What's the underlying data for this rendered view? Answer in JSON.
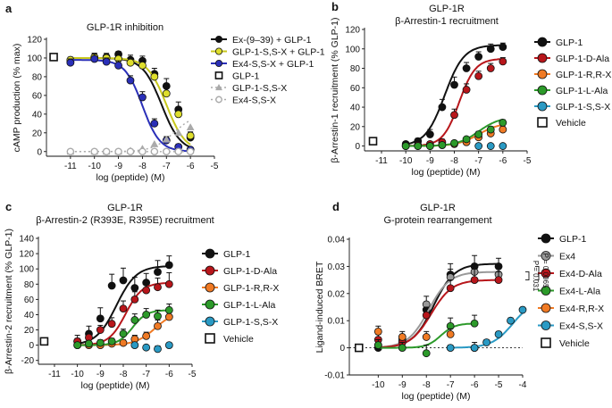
{
  "figure": {
    "background": "#ffffff"
  },
  "chart_data": [
    {
      "type": "line",
      "panel_label": "a",
      "title": "GLP-1R inhibition",
      "subtitle": "",
      "xlabel": "log (peptide) (M)",
      "ylabel": "cAMP production (% max)",
      "xlim": [
        -12,
        -5
      ],
      "ylim": [
        -5,
        120
      ],
      "xticks": [
        -11,
        -10,
        -9,
        -8,
        -7,
        -6,
        -5
      ],
      "xtick_labels": [
        "-11",
        "-10",
        "-9",
        "-8",
        "-7",
        "-6",
        "-5"
      ],
      "yticks": [
        0,
        20,
        40,
        60,
        80,
        100,
        120
      ],
      "ytick_labels": [
        "0",
        "20",
        "40",
        "60",
        "80",
        "100",
        "120"
      ],
      "zero_line": false,
      "legend_position": "right",
      "series": [
        {
          "name": "Ex-(9–39) + GLP-1",
          "marker": "circle",
          "color": "#111111",
          "x": [
            -11,
            -10,
            -9.5,
            -9,
            -8.5,
            -8,
            -7.5,
            -7,
            -6.5,
            -6
          ],
          "y": [
            96,
            100,
            101,
            104,
            98,
            97,
            83,
            70,
            45,
            15
          ],
          "err": [
            4,
            5,
            4,
            3,
            5,
            5,
            6,
            8,
            8,
            5
          ],
          "fit": {
            "top": 100,
            "bottom": 0,
            "logec50": -7.2,
            "hill": 1.1
          }
        },
        {
          "name": "GLP-1-S,S-X + GLP-1",
          "marker": "circle",
          "color": "#dede2c",
          "x": [
            -11,
            -10,
            -9.5,
            -9,
            -8.5,
            -8,
            -7.5,
            -7,
            -6.5,
            -6
          ],
          "y": [
            98,
            101,
            100,
            99,
            95,
            92,
            80,
            62,
            40,
            17
          ],
          "err": [
            3,
            4,
            3,
            4,
            4,
            5,
            5,
            6,
            6,
            4
          ],
          "fit": {
            "top": 100,
            "bottom": 0,
            "logec50": -7.0,
            "hill": 1.1
          }
        },
        {
          "name": "Ex4-S,S-X + GLP-1",
          "marker": "circle",
          "color": "#2a2fb8",
          "x": [
            -11,
            -10,
            -9.5,
            -9,
            -8.5,
            -8,
            -7.5,
            -7,
            -6.5,
            -6
          ],
          "y": [
            95,
            99,
            96,
            92,
            76,
            58,
            30,
            12,
            5,
            2
          ],
          "err": [
            4,
            5,
            4,
            5,
            5,
            6,
            5,
            4,
            3,
            2
          ],
          "fit": {
            "top": 98,
            "bottom": 0,
            "logec50": -8.0,
            "hill": 1.2
          }
        },
        {
          "name": "GLP-1",
          "marker": "square-open",
          "color": "#111111",
          "x": [
            -11.7
          ],
          "y": [
            101
          ],
          "err": [
            0
          ],
          "fit": null
        },
        {
          "name": "GLP-1-S,S-X",
          "marker": "triangle",
          "color": "#aaaaaa",
          "x": [
            -11,
            -10,
            -9.5,
            -9,
            -8.5,
            -8,
            -7.5,
            -7,
            -6.5,
            -6
          ],
          "y": [
            0,
            0,
            0,
            0,
            1,
            3,
            8,
            13,
            20,
            26
          ],
          "err": [
            0,
            0,
            0,
            0,
            0,
            0,
            0,
            0,
            0,
            0
          ],
          "fit": {
            "top": 40,
            "bottom": 0,
            "logec50": -6.7,
            "hill": 1.0
          },
          "dotted": true
        },
        {
          "name": "Ex4-S,S-X",
          "marker": "circle-open",
          "color": "#aaaaaa",
          "x": [
            -11,
            -10,
            -9.5,
            -9,
            -8.5,
            -8,
            -7.5,
            -7,
            -6.5,
            -6
          ],
          "y": [
            0,
            0,
            0,
            0,
            0,
            0,
            0,
            0,
            0,
            0
          ],
          "err": [
            0,
            0,
            0,
            0,
            0,
            0,
            0,
            0,
            0,
            0
          ],
          "fit": {
            "top": 0,
            "bottom": 0,
            "logec50": -7,
            "hill": 1.0
          },
          "dotted": true
        }
      ]
    },
    {
      "type": "line",
      "panel_label": "b",
      "title": "GLP-1R",
      "subtitle": "β-Arrestin-1 recruitment",
      "xlabel": "log (peptide) (M)",
      "ylabel": "β-Arrestin-1 recruitment (% GLP-1)",
      "xlim": [
        -11.7,
        -5
      ],
      "ylim": [
        -5,
        120
      ],
      "xticks": [
        -11,
        -10,
        -9,
        -8,
        -7,
        -6,
        -5
      ],
      "xtick_labels": [
        "-11",
        "-10",
        "-9",
        "-8",
        "-7",
        "-6",
        "-5"
      ],
      "yticks": [
        0,
        20,
        40,
        60,
        80,
        100,
        120
      ],
      "ytick_labels": [
        "0",
        "20",
        "40",
        "60",
        "80",
        "100",
        "120"
      ],
      "zero_line": false,
      "legend_position": "right",
      "series": [
        {
          "name": "GLP-1",
          "marker": "circle",
          "color": "#111111",
          "x": [
            -10,
            -9.5,
            -9,
            -8.5,
            -8,
            -7.5,
            -7,
            -6.5,
            -6
          ],
          "y": [
            2,
            5,
            12,
            40,
            63,
            80,
            92,
            100,
            102
          ],
          "err": [
            2,
            3,
            5,
            8,
            8,
            6,
            5,
            5,
            4
          ],
          "fit": {
            "top": 104,
            "bottom": 0,
            "logec50": -8.4,
            "hill": 1.1
          }
        },
        {
          "name": "GLP-1-D-Ala",
          "marker": "circle",
          "color": "#b8161b",
          "x": [
            -10,
            -9.5,
            -9,
            -8.5,
            -8,
            -7.5,
            -7,
            -6.5,
            -6
          ],
          "y": [
            0,
            1,
            2,
            4,
            32,
            58,
            72,
            80,
            87
          ],
          "err": [
            1,
            1,
            2,
            3,
            6,
            6,
            5,
            5,
            4
          ],
          "fit": {
            "top": 90,
            "bottom": 0,
            "logec50": -7.8,
            "hill": 1.3
          }
        },
        {
          "name": "GLP-1-R,R-X",
          "marker": "circle",
          "color": "#f07a24",
          "x": [
            -10,
            -9.5,
            -9,
            -8.5,
            -8,
            -7.5,
            -7,
            -6.5,
            -6
          ],
          "y": [
            0,
            0,
            0,
            1,
            2,
            4,
            9,
            13,
            17
          ],
          "err": [
            1,
            1,
            1,
            1,
            2,
            2,
            3,
            3,
            3
          ],
          "fit": {
            "top": 24,
            "bottom": 0,
            "logec50": -7.0,
            "hill": 1.0
          }
        },
        {
          "name": "GLP-1-L-Ala",
          "marker": "circle",
          "color": "#2c9a2a",
          "x": [
            -10,
            -9.5,
            -9,
            -8.5,
            -8,
            -7.5,
            -7,
            -6.5,
            -6
          ],
          "y": [
            0,
            0,
            0,
            1,
            3,
            7,
            12,
            17,
            24
          ],
          "err": [
            1,
            1,
            1,
            1,
            2,
            2,
            3,
            3,
            3
          ],
          "fit": {
            "top": 30,
            "bottom": 0,
            "logec50": -7.0,
            "hill": 1.0
          }
        },
        {
          "name": "GLP-1-S,S-X",
          "marker": "circle",
          "color": "#2a9ac4",
          "x": [
            -7,
            -6.5,
            -6
          ],
          "y": [
            0,
            0,
            0
          ],
          "err": [
            1,
            1,
            1
          ],
          "fit": null
        },
        {
          "name": "Vehicle",
          "marker": "square-open",
          "color": "#111111",
          "x": [
            -11.35
          ],
          "y": [
            5
          ],
          "err": [
            0
          ],
          "fit": null
        }
      ]
    },
    {
      "type": "line",
      "panel_label": "c",
      "title": "GLP-1R",
      "subtitle": "β-Arrestin-2 (R393E, R395E) recruitment",
      "xlabel": "log (peptide) (M)",
      "ylabel": "β-Arrestin-2 recruitment (% GLP-1)",
      "xlim": [
        -11.7,
        -5
      ],
      "ylim": [
        -25,
        140
      ],
      "xticks": [
        -11,
        -10,
        -9,
        -8,
        -7,
        -6,
        -5
      ],
      "xtick_labels": [
        "-11",
        "-10",
        "-9",
        "-8",
        "-7",
        "-6",
        "-5"
      ],
      "yticks": [
        -20,
        0,
        20,
        40,
        60,
        80,
        100,
        120,
        140
      ],
      "ytick_labels": [
        "-20",
        "0",
        "20",
        "40",
        "60",
        "80",
        "100",
        "120",
        "140"
      ],
      "zero_line": false,
      "legend_position": "right",
      "series": [
        {
          "name": "GLP-1",
          "marker": "circle",
          "color": "#111111",
          "x": [
            -10,
            -9.5,
            -9,
            -8.5,
            -8,
            -7.5,
            -7,
            -6.5,
            -6
          ],
          "y": [
            5,
            15,
            35,
            78,
            85,
            75,
            82,
            96,
            105
          ],
          "err": [
            8,
            10,
            14,
            15,
            16,
            14,
            12,
            15,
            12
          ],
          "fit": {
            "top": 104,
            "bottom": 0,
            "logec50": -8.3,
            "hill": 1.0
          }
        },
        {
          "name": "GLP-1-D-Ala",
          "marker": "circle",
          "color": "#b8161b",
          "x": [
            -10,
            -9.5,
            -9,
            -8.5,
            -8,
            -7.5,
            -7,
            -6.5,
            -6
          ],
          "y": [
            5,
            10,
            20,
            28,
            48,
            60,
            72,
            76,
            80
          ],
          "err": [
            4,
            5,
            6,
            8,
            10,
            10,
            10,
            12,
            15
          ],
          "fit": {
            "top": 82,
            "bottom": 0,
            "logec50": -7.9,
            "hill": 1.2
          }
        },
        {
          "name": "GLP-1-R,R-X",
          "marker": "circle",
          "color": "#f07a24",
          "x": [
            -10,
            -9.5,
            -9,
            -8.5,
            -8,
            -7.5,
            -7,
            -6.5,
            -6
          ],
          "y": [
            0,
            0,
            0,
            2,
            3,
            8,
            12,
            25,
            37
          ],
          "err": [
            3,
            3,
            3,
            4,
            4,
            5,
            5,
            8,
            8
          ],
          "fit": {
            "top": 45,
            "bottom": 0,
            "logec50": -6.6,
            "hill": 1.0
          }
        },
        {
          "name": "GLP-1-L-Ala",
          "marker": "circle",
          "color": "#2c9a2a",
          "x": [
            -10,
            -9.5,
            -9,
            -8.5,
            -8,
            -7.5,
            -7,
            -6.5,
            -6
          ],
          "y": [
            0,
            2,
            3,
            5,
            15,
            33,
            40,
            38,
            46
          ],
          "err": [
            3,
            3,
            4,
            4,
            6,
            8,
            8,
            8,
            8
          ],
          "fit": {
            "top": 46,
            "bottom": 0,
            "logec50": -7.6,
            "hill": 1.4
          }
        },
        {
          "name": "GLP-1-S,S-X",
          "marker": "circle",
          "color": "#2a9ac4",
          "x": [
            -7.5,
            -7,
            -6.5,
            -6
          ],
          "y": [
            0,
            -3,
            -5,
            0
          ],
          "err": [
            3,
            3,
            4,
            3
          ],
          "fit": null
        },
        {
          "name": "Vehicle",
          "marker": "square-open",
          "color": "#111111",
          "x": [
            -11.45
          ],
          "y": [
            5
          ],
          "err": [
            0
          ],
          "fit": null
        }
      ]
    },
    {
      "type": "line",
      "panel_label": "d",
      "title": "GLP-1R",
      "subtitle": "G-protein rearrangement",
      "xlabel": "log (peptide) (M)",
      "ylabel": "Ligand-induced BRET",
      "xlim": [
        -11.2,
        -4
      ],
      "ylim": [
        -0.01,
        0.04
      ],
      "xticks": [
        -10,
        -9,
        -8,
        -7,
        -6,
        -5,
        -4
      ],
      "xtick_labels": [
        "-10",
        "-9",
        "-8",
        "-7",
        "-6",
        "-5",
        "-4"
      ],
      "yticks": [
        -0.01,
        0,
        0.01,
        0.02,
        0.03,
        0.04
      ],
      "ytick_labels": [
        "-0.01",
        "0",
        "0.01",
        "0.02",
        "0.03",
        "0.04"
      ],
      "zero_line": true,
      "legend_position": "right",
      "annotations": [
        {
          "text": "P = 0.031",
          "between": [
            "Ex4",
            "Ex4-D-Ala"
          ]
        },
        {
          "text": "P = 0.0065",
          "between": [
            "GLP-1",
            "Ex4-D-Ala"
          ]
        }
      ],
      "series": [
        {
          "name": "GLP-1",
          "marker": "circle",
          "color": "#111111",
          "x": [
            -10,
            -9,
            -8,
            -7,
            -6,
            -5
          ],
          "y": [
            0,
            0.002,
            0.014,
            0.027,
            0.03,
            0.03
          ],
          "err": [
            0.001,
            0.002,
            0.003,
            0.004,
            0.004,
            0.003
          ],
          "fit": {
            "top": 0.031,
            "bottom": 0,
            "logec50": -7.7,
            "hill": 1.0
          }
        },
        {
          "name": "Ex4",
          "marker": "circle",
          "color": "#999999",
          "x": [
            -10,
            -9,
            -8,
            -7,
            -6,
            -5
          ],
          "y": [
            0.001,
            0.003,
            0.016,
            0.026,
            0.028,
            0.027
          ],
          "err": [
            0.001,
            0.002,
            0.003,
            0.003,
            0.003,
            0.003
          ],
          "fit": {
            "top": 0.028,
            "bottom": 0,
            "logec50": -7.9,
            "hill": 1.0
          }
        },
        {
          "name": "Ex4-D-Ala",
          "marker": "circle",
          "color": "#b8161b",
          "x": [
            -10,
            -9,
            -8,
            -7,
            -6,
            -5
          ],
          "y": [
            0.003,
            0.002,
            0.012,
            0.022,
            0.025,
            0.025
          ],
          "err": [
            0.002,
            0.002,
            0.003,
            0.003,
            0.004,
            0.003
          ],
          "fit": {
            "top": 0.025,
            "bottom": 0,
            "logec50": -7.8,
            "hill": 1.0
          }
        },
        {
          "name": "Ex4-L-Ala",
          "marker": "circle",
          "color": "#2c9a2a",
          "x": [
            -10,
            -9,
            -8,
            -7,
            -6
          ],
          "y": [
            0.001,
            0,
            -0.002,
            0.008,
            0.009
          ],
          "err": [
            0.002,
            0.002,
            0.003,
            0.003,
            0.003
          ],
          "fit": {
            "top": 0.009,
            "bottom": 0,
            "logec50": -7.4,
            "hill": 1.5
          }
        },
        {
          "name": "Ex4-R,R-X",
          "marker": "circle",
          "color": "#f07a24",
          "x": [
            -10,
            -9,
            -8,
            -7,
            -6
          ],
          "y": [
            0.006,
            0.004,
            0.004,
            0.005,
            0
          ],
          "err": [
            0.002,
            0.002,
            0.002,
            0.002,
            0.002
          ],
          "fit": null
        },
        {
          "name": "Ex4-S,S-X",
          "marker": "circle",
          "color": "#2a9ac4",
          "x": [
            -7,
            -6,
            -5.5,
            -5,
            -4.5,
            -4
          ],
          "y": [
            0,
            0,
            0.002,
            0.005,
            0.01,
            0.014
          ],
          "err": [
            0.001,
            0.001,
            0.001,
            0.001,
            0.001,
            0.001
          ],
          "fit": {
            "top": 0.018,
            "bottom": 0,
            "logec50": -4.4,
            "hill": 1.0
          }
        },
        {
          "name": "Vehicle",
          "marker": "square-open",
          "color": "#111111",
          "x": [
            -10.8
          ],
          "y": [
            0
          ],
          "err": [
            0
          ],
          "fit": null
        }
      ]
    }
  ]
}
